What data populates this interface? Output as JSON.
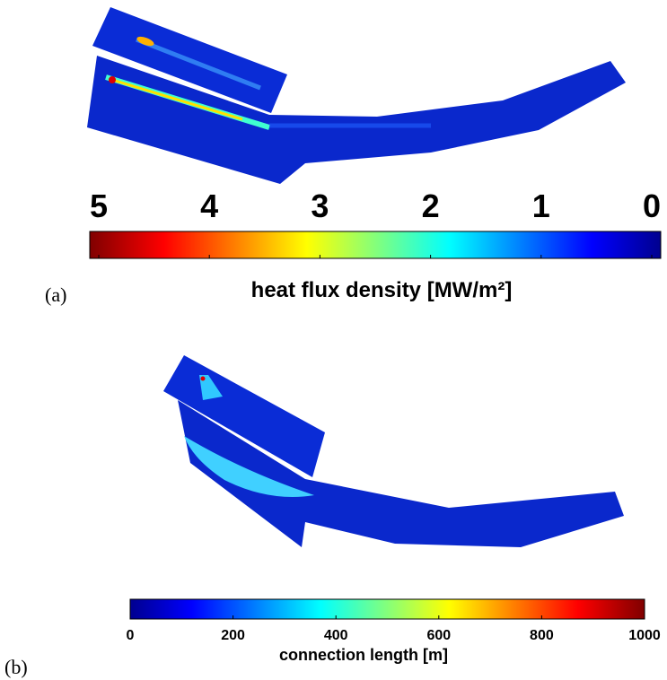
{
  "panels": [
    {
      "label": "(a)",
      "colorbar": {
        "label": "heat flux density [MW/m²]",
        "clim": [
          5,
          0
        ],
        "ticks": [
          5,
          4,
          3,
          2,
          1,
          0
        ]
      }
    },
    {
      "label": "(b)",
      "colorbar": {
        "label": "connection length [m]",
        "clim": [
          0,
          1000
        ],
        "ticks": [
          0,
          200,
          400,
          600,
          800,
          1000
        ]
      }
    }
  ]
}
